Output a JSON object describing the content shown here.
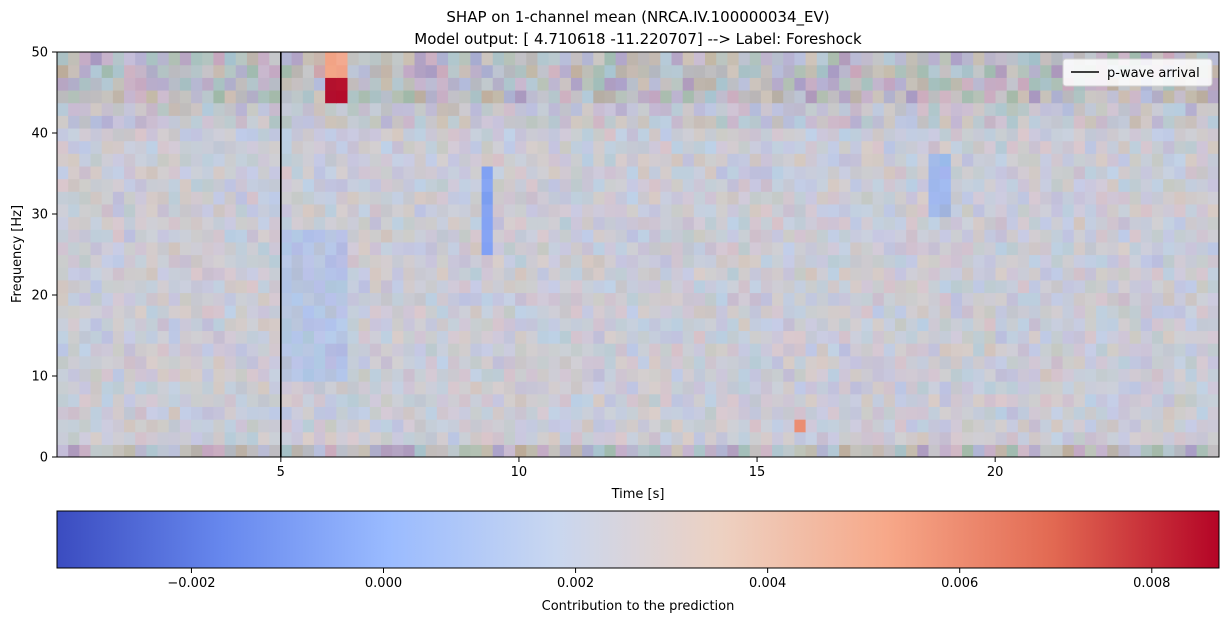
{
  "chart_data": {
    "type": "heatmap",
    "title": "SHAP on 1-channel mean (NRCA.IV.100000034_EV)",
    "subtitle": "Model output: [  4.710618 -11.220707] --> Label: Foreshock",
    "xlabel": "Time [s]",
    "ylabel": "Frequency [Hz]",
    "xlim": [
      0.3,
      24.7
    ],
    "ylim": [
      0,
      50
    ],
    "x_ticks": [
      5,
      10,
      15,
      20
    ],
    "y_ticks": [
      0,
      10,
      20,
      30,
      40,
      50
    ],
    "grid": false,
    "legend": {
      "placement": "top-right",
      "entries": [
        {
          "label": "p-wave arrival",
          "color": "#000000",
          "style": "line"
        }
      ]
    },
    "vline": {
      "x": 5.0,
      "label": "p-wave arrival",
      "color": "#000000"
    },
    "heatmap": {
      "time_bins": 104,
      "freq_bins": 32,
      "base_value": 0.0023,
      "highlights": [
        {
          "t": [
            6.0,
            6.3
          ],
          "f": [
            44.0,
            47.0
          ],
          "value": 0.0087
        },
        {
          "t": [
            6.0,
            6.3
          ],
          "f": [
            47.0,
            50.0
          ],
          "value": 0.0052
        },
        {
          "t": [
            5.7,
            6.0
          ],
          "f": [
            47.0,
            50.0
          ],
          "value": 0.004
        },
        {
          "t": [
            9.1,
            9.5
          ],
          "f": [
            25.5,
            36.0
          ],
          "value": -0.0008
        },
        {
          "t": [
            18.6,
            19.0
          ],
          "f": [
            29.5,
            38.0
          ],
          "value": 0.0003
        },
        {
          "t": [
            5.0,
            6.5
          ],
          "f": [
            10.0,
            28.0
          ],
          "value": 0.0012
        },
        {
          "t": [
            10.0,
            11.5
          ],
          "f": [
            8.0,
            14.0
          ],
          "value": 0.0025
        },
        {
          "t": [
            15.8,
            16.0
          ],
          "f": [
            3.0,
            4.5
          ],
          "value": 0.006
        }
      ]
    },
    "colorbar": {
      "label": "Contribution to the prediction",
      "colormap": "coolwarm",
      "range": [
        -0.0034,
        0.0087
      ],
      "ticks": [
        -0.002,
        0.0,
        0.002,
        0.004,
        0.006,
        0.008
      ],
      "tick_labels": [
        "−0.002",
        "0.000",
        "0.002",
        "0.004",
        "0.006",
        "0.008"
      ],
      "colors": [
        "#3b4cc0",
        "#6788ee",
        "#9abbff",
        "#c9d7f0",
        "#edd1c2",
        "#f7a889",
        "#e26952",
        "#b40426"
      ]
    }
  }
}
